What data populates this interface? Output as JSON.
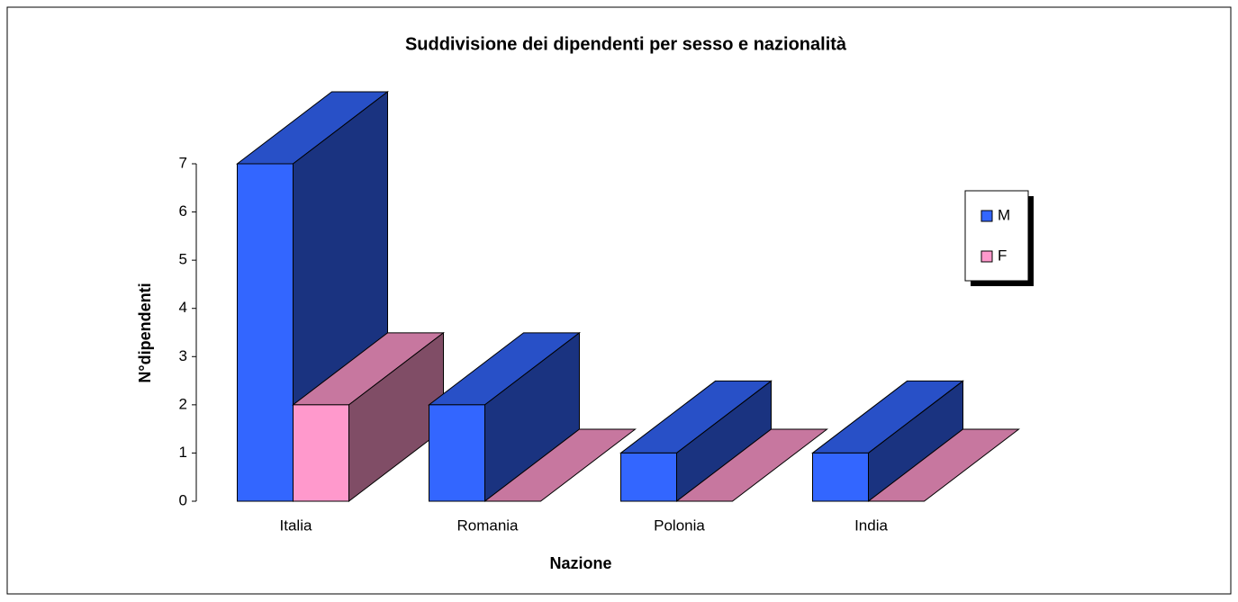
{
  "chart_data": {
    "type": "bar3d",
    "title": "Suddivisione dei dipendenti per sesso e nazionalità",
    "xlabel": "Nazione",
    "ylabel": "N°dipendenti",
    "categories": [
      "Italia",
      "Romania",
      "Polonia",
      "India"
    ],
    "series": [
      {
        "name": "M",
        "color": "#3366ff",
        "values": [
          7,
          2,
          1,
          1
        ]
      },
      {
        "name": "F",
        "color": "#ff99cc",
        "values": [
          2,
          0,
          0,
          0
        ]
      }
    ],
    "ylim": [
      0,
      7
    ],
    "yticks": [
      0,
      1,
      2,
      3,
      4,
      5,
      6,
      7
    ],
    "legend": "right"
  }
}
